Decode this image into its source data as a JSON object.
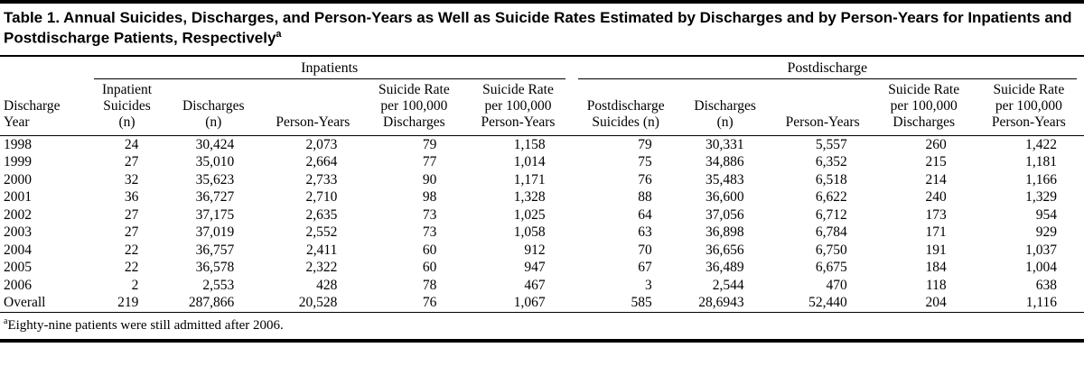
{
  "title": {
    "text": "Table 1. Annual Suicides, Discharges, and Person-Years as Well as Suicide Rates Estimated by Discharges and by Person-Years for Inpatients and Postdischarge Patients, Respectively",
    "superscript": "a"
  },
  "table": {
    "group_headers": {
      "inpatients": "Inpatients",
      "postdischarge": "Postdischarge"
    },
    "columns": [
      "Discharge\nYear",
      "Inpatient\nSuicides\n(n)",
      "Discharges\n(n)",
      "Person-Years",
      "Suicide Rate\nper 100,000\nDischarges",
      "Suicide Rate\nper 100,000\nPerson-Years",
      "Postdischarge\nSuicides (n)",
      "Discharges\n(n)",
      "Person-Years",
      "Suicide Rate\nper 100,000\nDischarges",
      "Suicide Rate\nper 100,000\nPerson-Years"
    ],
    "rows": [
      [
        "1998",
        "24",
        "30,424",
        "2,073",
        "79",
        "1,158",
        "79",
        "30,331",
        "5,557",
        "260",
        "1,422"
      ],
      [
        "1999",
        "27",
        "35,010",
        "2,664",
        "77",
        "1,014",
        "75",
        "34,886",
        "6,352",
        "215",
        "1,181"
      ],
      [
        "2000",
        "32",
        "35,623",
        "2,733",
        "90",
        "1,171",
        "76",
        "35,483",
        "6,518",
        "214",
        "1,166"
      ],
      [
        "2001",
        "36",
        "36,727",
        "2,710",
        "98",
        "1,328",
        "88",
        "36,600",
        "6,622",
        "240",
        "1,329"
      ],
      [
        "2002",
        "27",
        "37,175",
        "2,635",
        "73",
        "1,025",
        "64",
        "37,056",
        "6,712",
        "173",
        "954"
      ],
      [
        "2003",
        "27",
        "37,019",
        "2,552",
        "73",
        "1,058",
        "63",
        "36,898",
        "6,784",
        "171",
        "929"
      ],
      [
        "2004",
        "22",
        "36,757",
        "2,411",
        "60",
        "912",
        "70",
        "36,656",
        "6,750",
        "191",
        "1,037"
      ],
      [
        "2005",
        "22",
        "36,578",
        "2,322",
        "60",
        "947",
        "67",
        "36,489",
        "6,675",
        "184",
        "1,004"
      ],
      [
        "2006",
        "2",
        "2,553",
        "428",
        "78",
        "467",
        "3",
        "2,544",
        "470",
        "118",
        "638"
      ],
      [
        "Overall",
        "219",
        "287,866",
        "20,528",
        "76",
        "1,067",
        "585",
        "28,6943",
        "52,440",
        "204",
        "1,116"
      ]
    ]
  },
  "footnote": {
    "marker": "a",
    "text": "Eighty-nine patients were still admitted after 2006."
  }
}
